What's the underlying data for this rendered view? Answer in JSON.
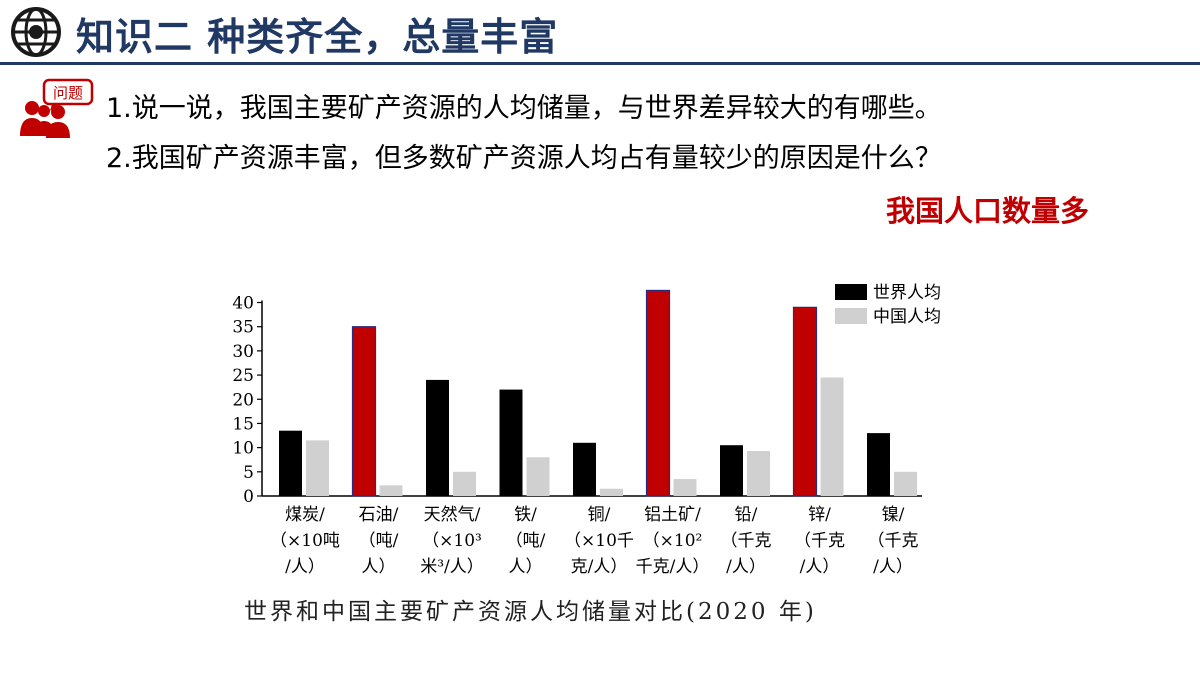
{
  "header": {
    "title": "知识二 种类齐全，总量丰富"
  },
  "question_icon": {
    "label": "问题"
  },
  "questions": [
    "1.说一说，我国主要矿产资源的人均储量，与世界差异较大的有哪些。",
    "2.我国矿产资源丰富，但多数矿产资源人均占有量较少的原因是什么？"
  ],
  "answer": "我国人口数量多",
  "colors": {
    "title": "#1f3864",
    "answer": "#c00000",
    "world_bar": "#000000",
    "highlight_bar": "#c00000",
    "china_bar": "#d0d0d0"
  },
  "chart_data": {
    "type": "bar",
    "categories": [
      [
        "煤炭/",
        "（×10吨",
        "/人）"
      ],
      [
        "石油/",
        "（吨/",
        "人）"
      ],
      [
        "天然气/",
        "（×10³",
        "米³/人）"
      ],
      [
        "铁/",
        "（吨/",
        "人）"
      ],
      [
        "铜/",
        "（×10千",
        "克/人）"
      ],
      [
        "铝土矿/",
        "（×10²",
        "千克/人）"
      ],
      [
        "铅/",
        "（千克",
        "/人）"
      ],
      [
        "锌/",
        "（千克",
        "/人）"
      ],
      [
        "镍/",
        "（千克",
        "/人）"
      ]
    ],
    "series": [
      {
        "name": "世界人均",
        "values": [
          13.5,
          35,
          24,
          22,
          11,
          42.5,
          10.5,
          39,
          13
        ]
      },
      {
        "name": "中国人均",
        "values": [
          11.5,
          2.2,
          5,
          8,
          1.5,
          3.5,
          9.3,
          24.5,
          5
        ]
      }
    ],
    "highlighted_categories": [
      1,
      5,
      7
    ],
    "yticks": [
      0,
      5,
      10,
      15,
      20,
      25,
      30,
      35,
      40
    ],
    "ylim": [
      0,
      43
    ],
    "legend_position": "top-right",
    "caption": "世界和中国主要矿产资源人均储量对比(2020 年)"
  }
}
